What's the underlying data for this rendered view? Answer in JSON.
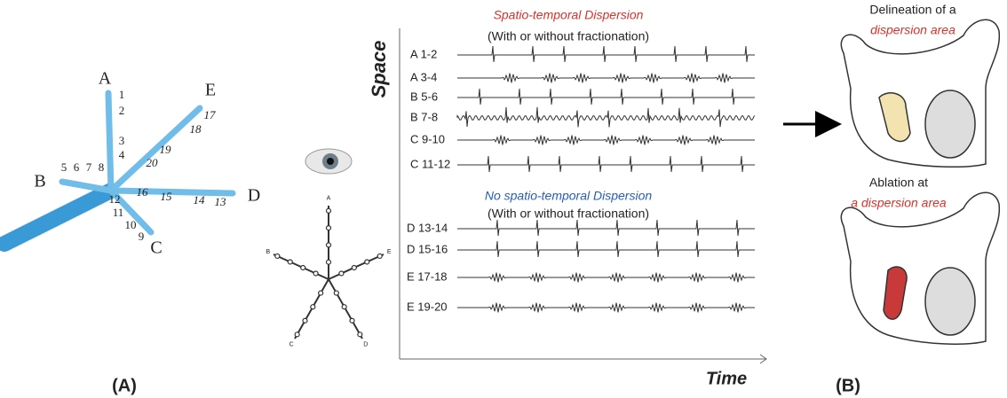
{
  "panel_a": {
    "label": "(A)",
    "spline_letters": [
      "A",
      "B",
      "C",
      "D",
      "E"
    ],
    "electrode_numbers": [
      "1",
      "2",
      "3",
      "4",
      "5",
      "6",
      "7",
      "8",
      "9",
      "10",
      "11",
      "12",
      "13",
      "14",
      "15",
      "16",
      "17",
      "18",
      "19",
      "20"
    ]
  },
  "mini_star": {
    "letters": [
      "A",
      "B",
      "C",
      "D",
      "E"
    ]
  },
  "signals": {
    "axis_y": "Space",
    "axis_x": "Time",
    "group_1": {
      "title": "Spatio-temporal Dispersion",
      "subtitle": "(With or without fractionation)",
      "channels": [
        "A 1-2",
        "A 3-4",
        "B 5-6",
        "B 7-8",
        "C 9-10",
        "C 11-12"
      ]
    },
    "group_2": {
      "title": "No spatio-temporal Dispersion",
      "subtitle": "(With or without fractionation)",
      "channels": [
        "D 13-14",
        "D 15-16",
        "E 17-18",
        "E 19-20"
      ]
    }
  },
  "panel_b": {
    "label": "(B)",
    "top_caption": [
      "Delineation of a",
      "dispersion area"
    ],
    "bottom_caption": [
      "Ablation at",
      "a dispersion area"
    ]
  }
}
